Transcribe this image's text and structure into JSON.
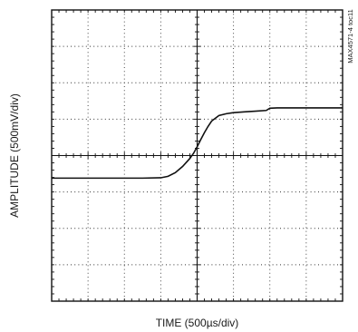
{
  "chart_data": {
    "type": "line",
    "xlabel": "TIME (500µs/div)",
    "ylabel": "AMPLITUDE (500mV/div)",
    "side_label": "MAX4571-4 toc11",
    "x_divisions": 8,
    "y_divisions": 8,
    "xlim": [
      0,
      8
    ],
    "ylim": [
      -4,
      4
    ],
    "grid": true,
    "series": [
      {
        "x": [
          0,
          0.5,
          1.0,
          1.5,
          2.0,
          2.5,
          3.0,
          3.2,
          3.4,
          3.6,
          3.8,
          3.9,
          4.0,
          4.1,
          4.2,
          4.3,
          4.4,
          4.6,
          4.8,
          5.0,
          5.3,
          5.6,
          5.9,
          6.0,
          6.2,
          6.6,
          7.0,
          7.5,
          8.0
        ],
        "y": [
          -0.62,
          -0.62,
          -0.62,
          -0.62,
          -0.62,
          -0.62,
          -0.61,
          -0.57,
          -0.47,
          -0.3,
          -0.08,
          0.06,
          0.24,
          0.44,
          0.63,
          0.8,
          0.95,
          1.1,
          1.15,
          1.18,
          1.2,
          1.22,
          1.24,
          1.3,
          1.31,
          1.31,
          1.31,
          1.31,
          1.31
        ]
      }
    ]
  }
}
